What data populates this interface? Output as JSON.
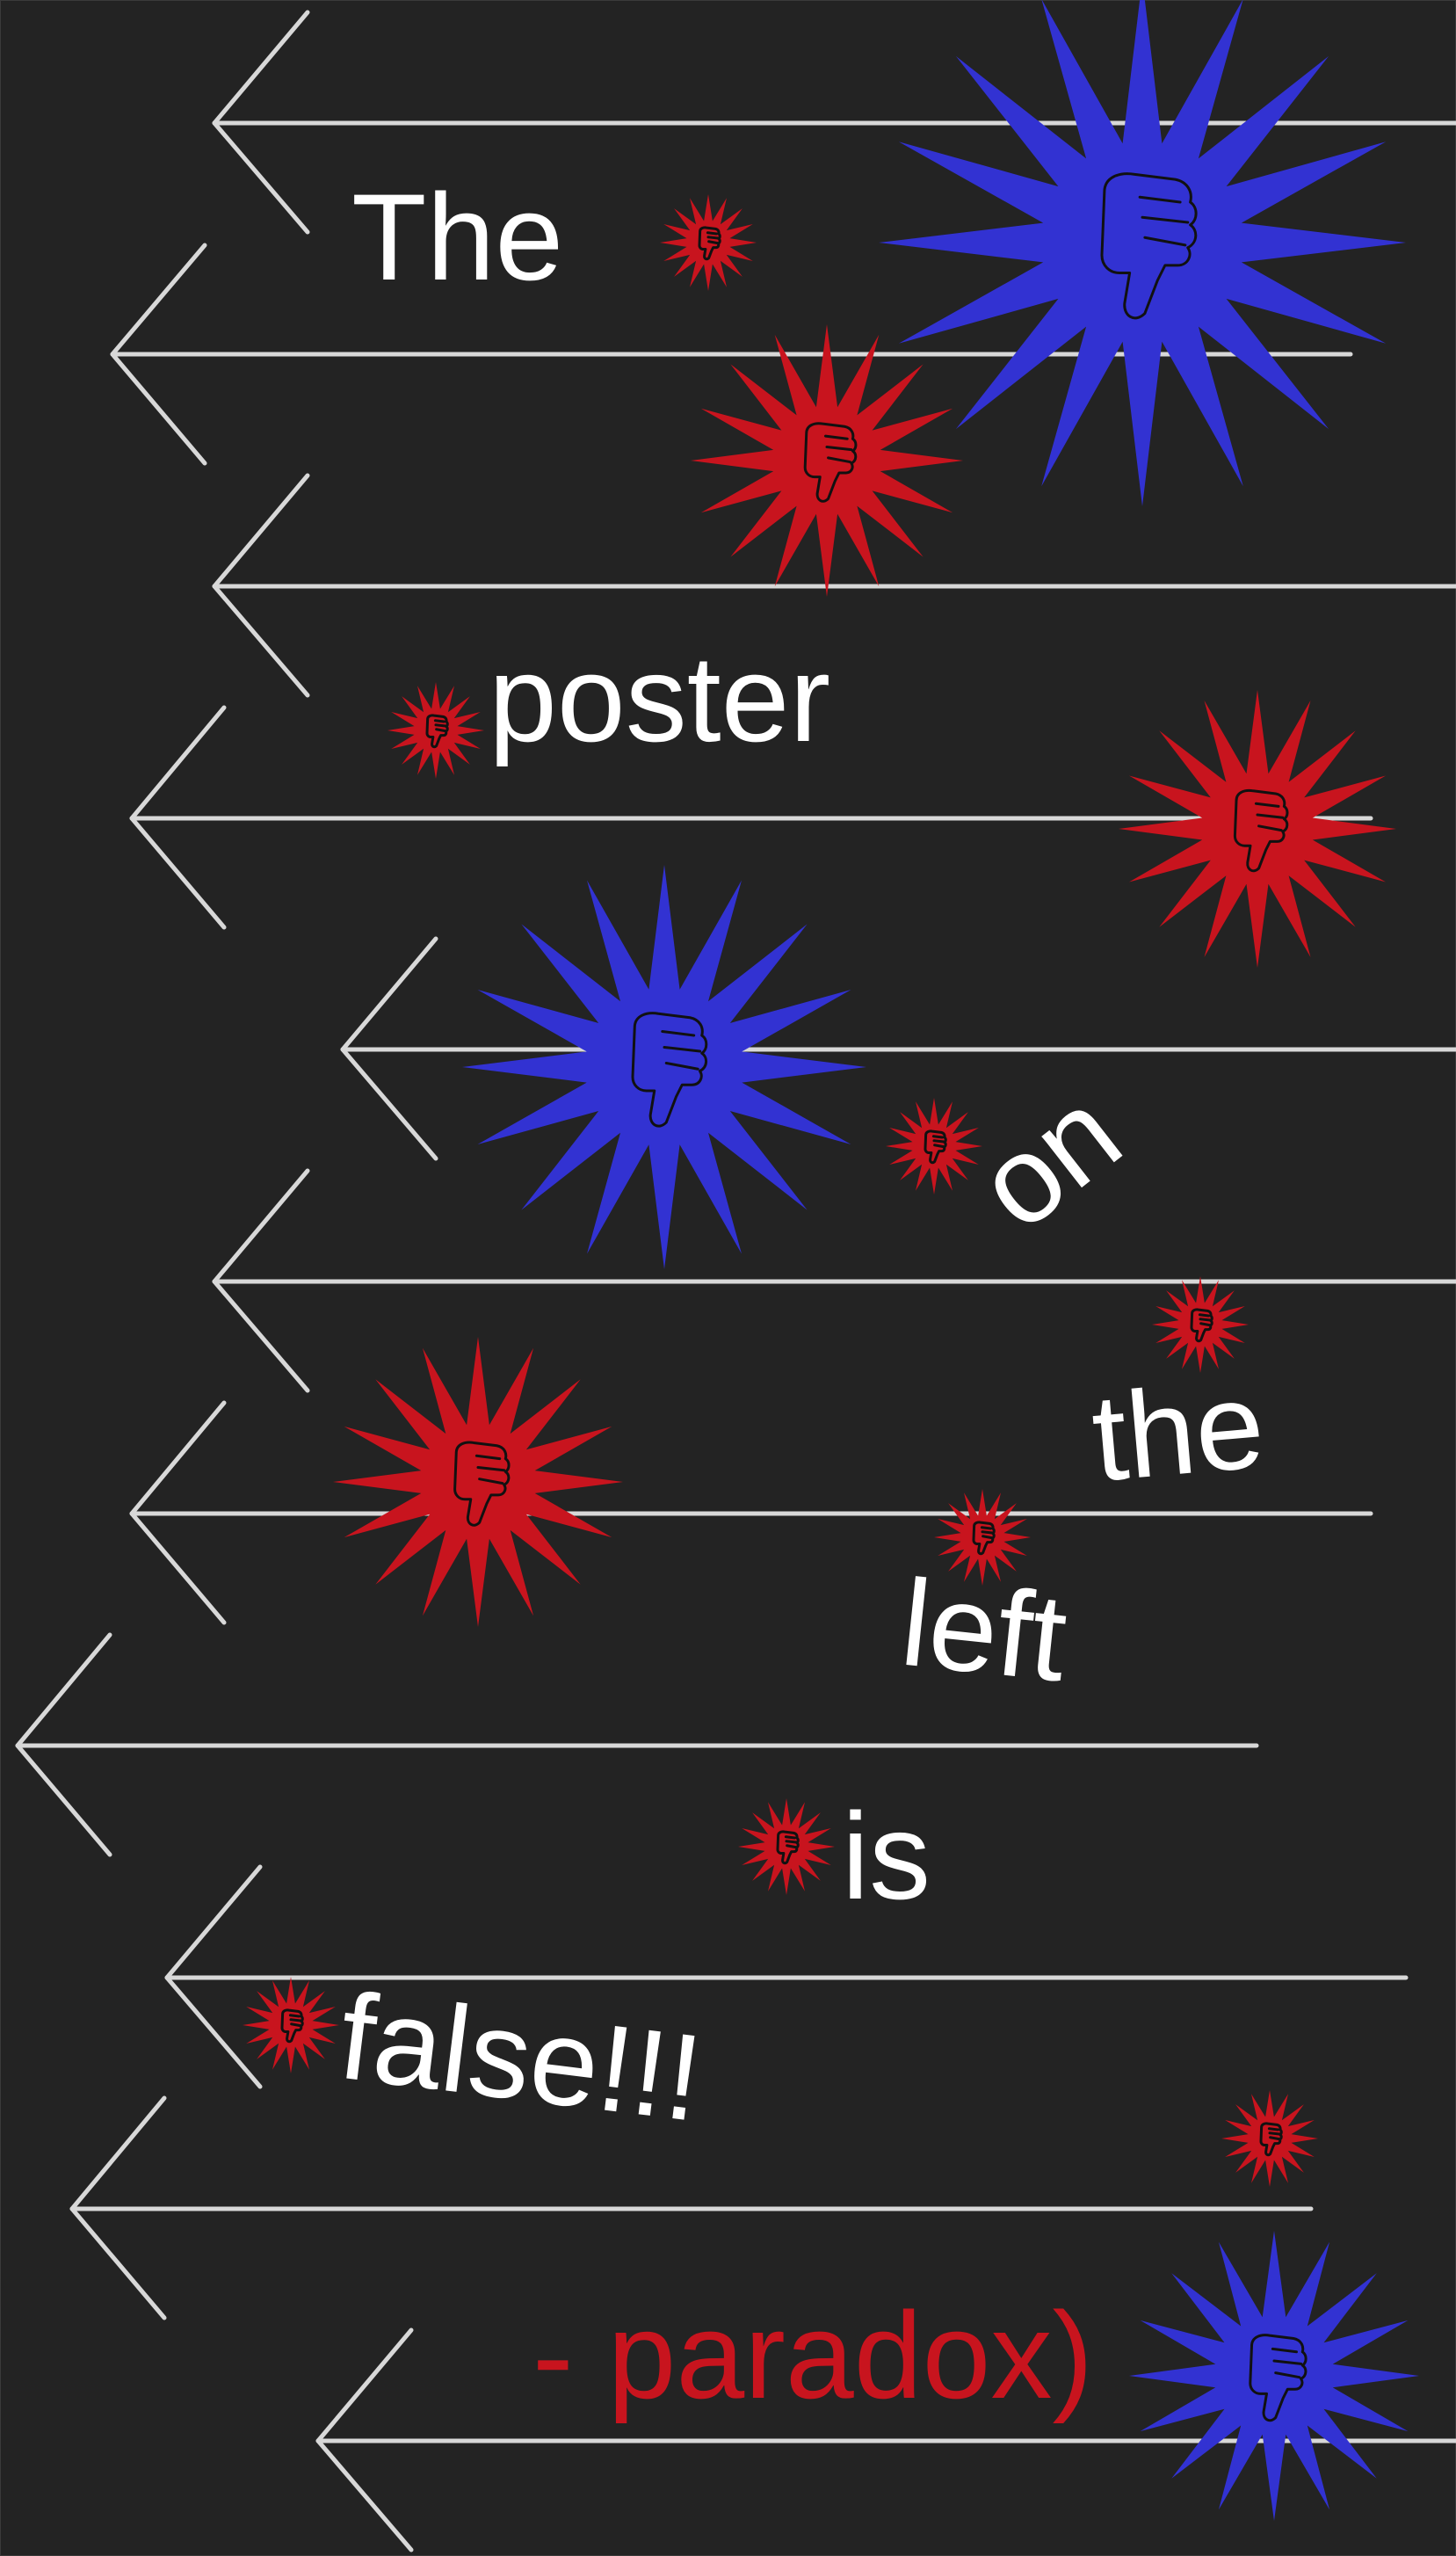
{
  "colors": {
    "background": "#232323",
    "arrow": "#d8d8d8",
    "text": "#ffffff",
    "accent_red": "#c8141e",
    "accent_blue": "#3232d2",
    "icon_stroke": "#111111"
  },
  "words": {
    "w1": "The",
    "w2": "poster",
    "w3": "on",
    "w4": "the",
    "w5": "left",
    "w6": "is",
    "w7": "false!!!",
    "signature": "- paradox)"
  }
}
